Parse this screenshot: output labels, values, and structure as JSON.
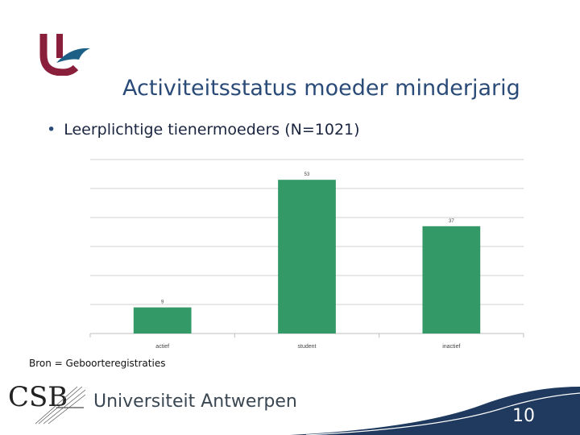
{
  "slide": {
    "title": "Activiteitsstatus moeder minderjarig",
    "bullet": "Leerplichtige tienermoeders (N=1021)",
    "source": "Bron = Geboorteregistraties",
    "university": "Universiteit Antwerpen",
    "csb_text": "CSB",
    "page_number": "10"
  },
  "colors": {
    "bar": "#339966",
    "title": "#2a4b78",
    "footer_band": "#1f3a5e",
    "logo_red": "#8a1f3c",
    "logo_blue": "#1e5f86"
  },
  "chart_data": {
    "type": "bar",
    "categories": [
      "actief",
      "student",
      "inactief"
    ],
    "values": [
      9,
      53,
      37
    ],
    "data_labels": [
      "9",
      "53",
      "37"
    ],
    "ylim": [
      0,
      60
    ],
    "grid": true,
    "legend": "none",
    "title": "",
    "xlabel": "",
    "ylabel": ""
  }
}
